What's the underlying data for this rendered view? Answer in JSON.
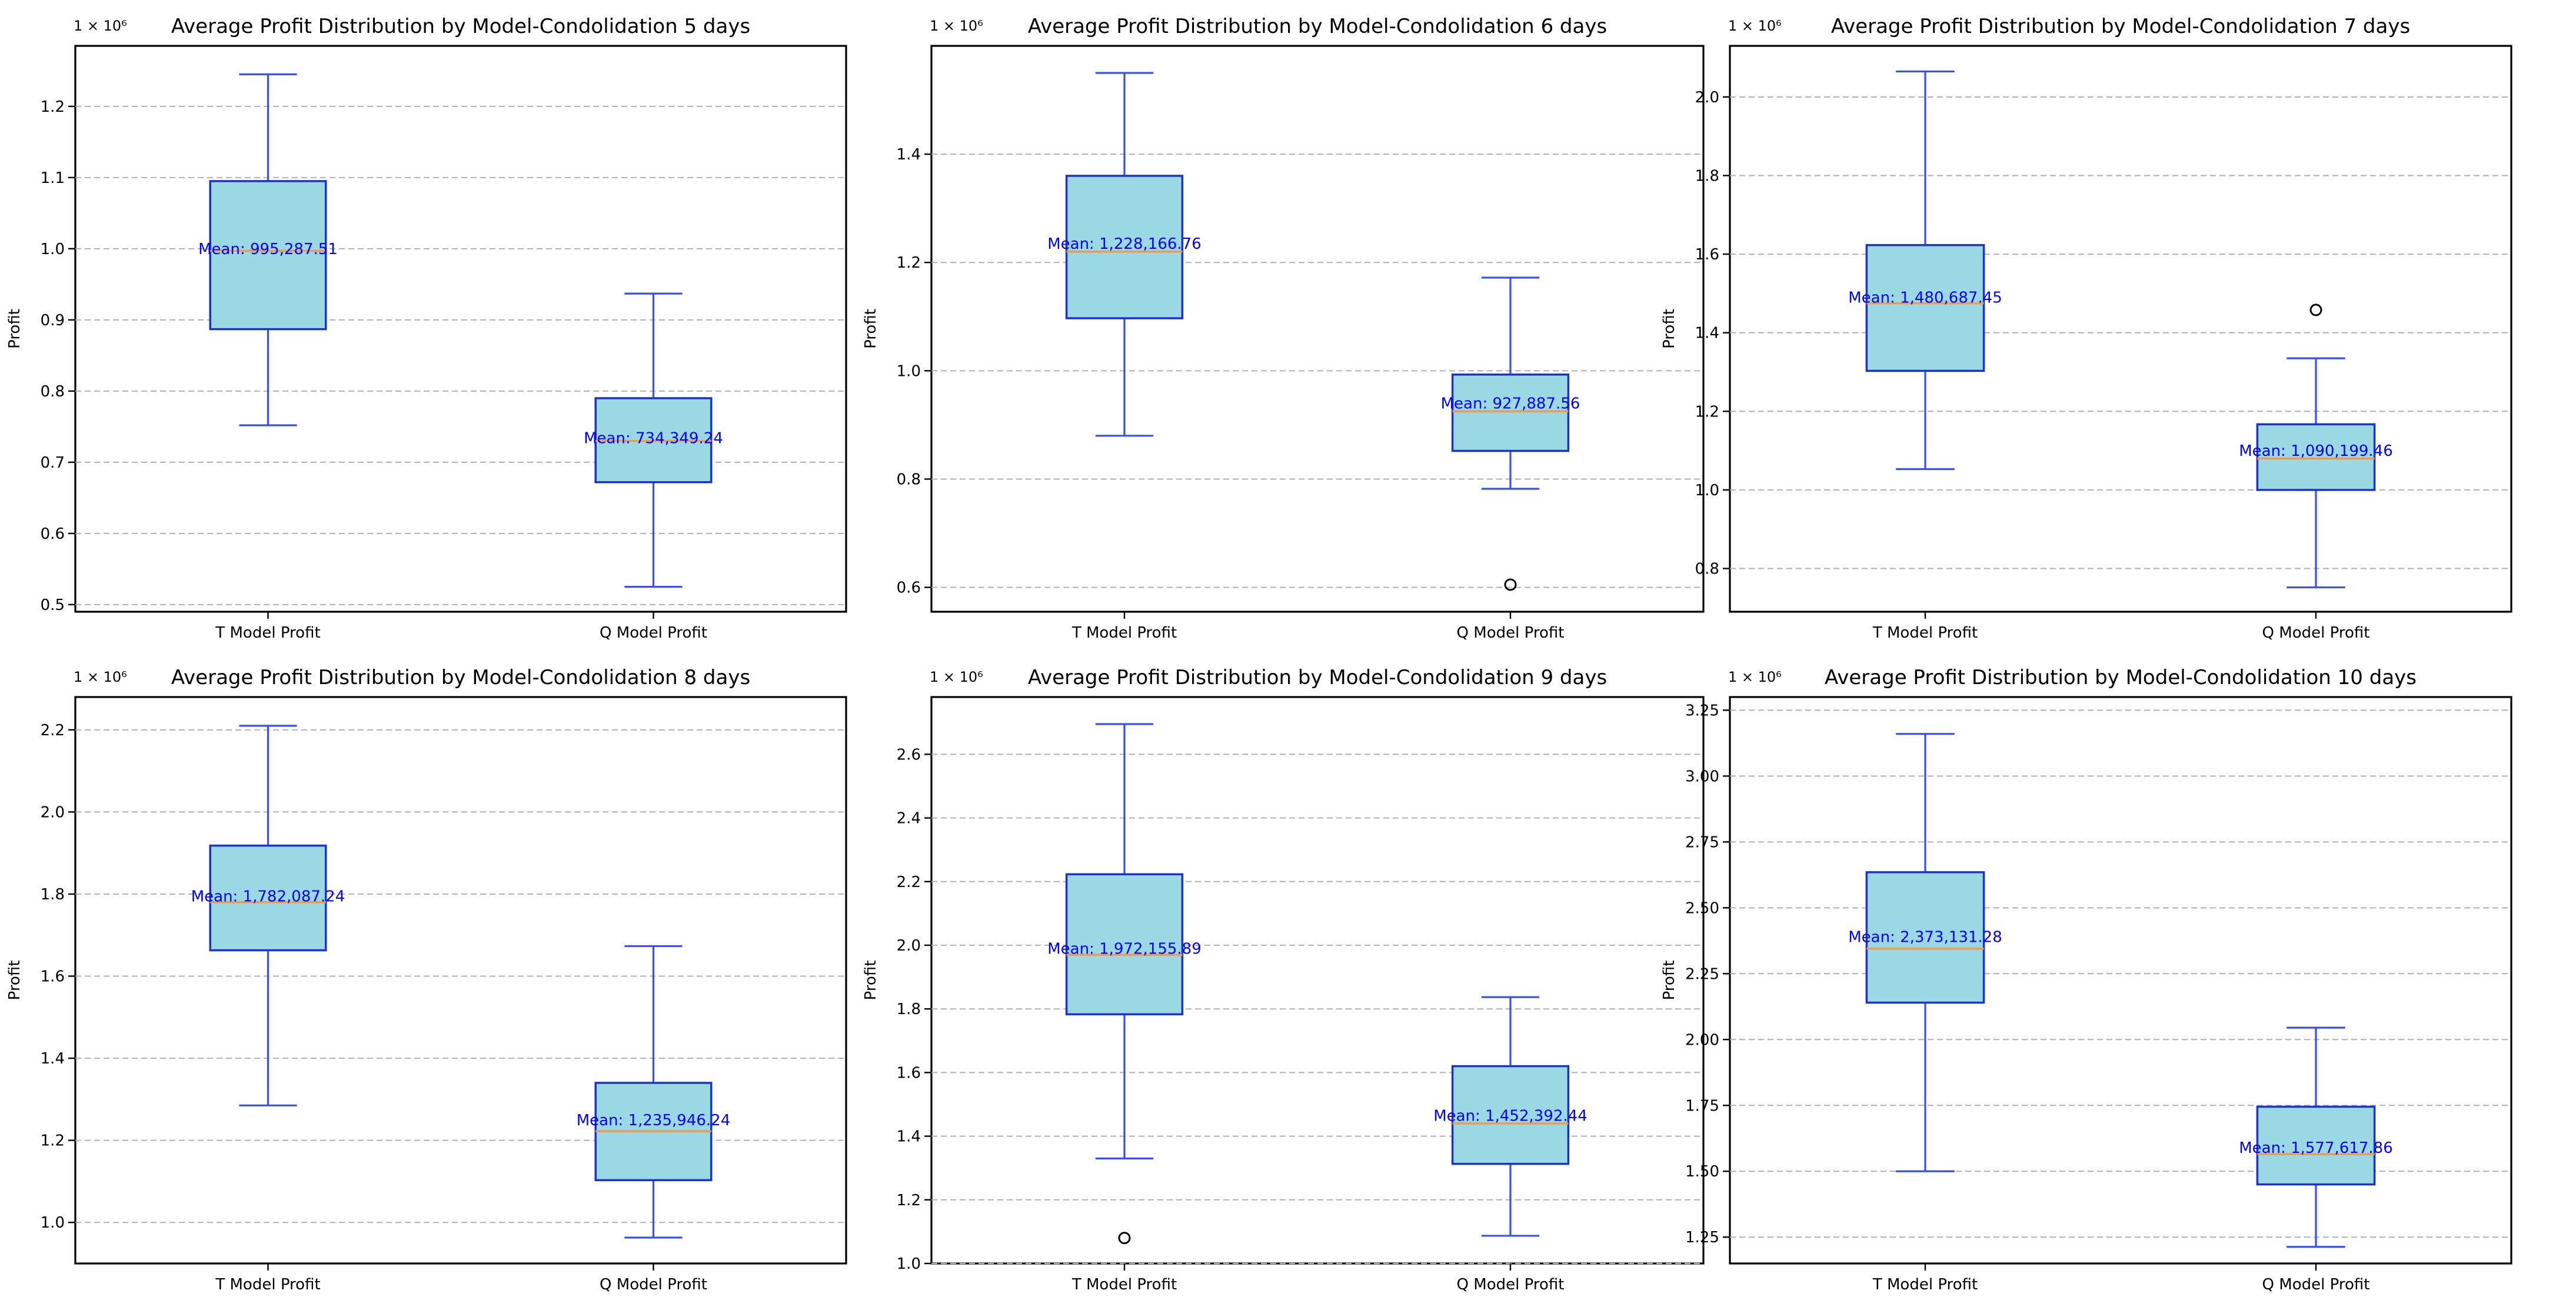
{
  "figure": {
    "background": "#ffffff"
  },
  "colors": {
    "box_fill": "#9ad8e4",
    "box_edge": "#1a33cc",
    "whisker": "#3a4ff2",
    "median": "#f09a4a",
    "mean_label": "#0000ff",
    "grid": "#b0b0b0"
  },
  "chart_data": [
    {
      "type": "box",
      "title": "Average Profit Distribution by Model-Condolidation 5 days",
      "ylabel": "Profit",
      "scale_label": "1 × 10⁶",
      "ylim": [
        0.49,
        1.285
      ],
      "yticks": [
        0.5,
        0.6,
        0.7,
        0.8,
        0.9,
        1.0,
        1.1,
        1.2
      ],
      "yticklabels": [
        "0.5",
        "0.6",
        "0.7",
        "0.8",
        "0.9",
        "1.0",
        "1.1",
        "1.2"
      ],
      "categories": [
        "T Model Profit",
        "Q Model Profit"
      ],
      "boxes": [
        {
          "whislo": 0.752,
          "q1": 0.887,
          "med": 0.997,
          "q3": 1.095,
          "whishi": 1.245,
          "mean_text": "Mean: 995,287.51",
          "mean_pos": 1.0,
          "fliers": []
        },
        {
          "whislo": 0.525,
          "q1": 0.672,
          "med": 0.73,
          "q3": 0.79,
          "whishi": 0.937,
          "mean_text": "Mean: 734,349.24",
          "mean_pos": 0.734,
          "fliers": []
        }
      ]
    },
    {
      "type": "box",
      "title": "Average Profit Distribution by Model-Condolidation 6 days",
      "ylabel": "Profit",
      "scale_label": "1 × 10⁶",
      "ylim": [
        0.555,
        1.6
      ],
      "yticks": [
        0.6,
        0.8,
        1.0,
        1.2,
        1.4
      ],
      "yticklabels": [
        "0.6",
        "0.8",
        "1.0",
        "1.2",
        "1.4"
      ],
      "categories": [
        "T Model Profit",
        "Q Model Profit"
      ],
      "boxes": [
        {
          "whislo": 0.88,
          "q1": 1.097,
          "med": 1.22,
          "q3": 1.36,
          "whishi": 1.55,
          "mean_text": "Mean: 1,228,166.76",
          "mean_pos": 1.235,
          "fliers": []
        },
        {
          "whislo": 0.782,
          "q1": 0.852,
          "med": 0.925,
          "q3": 0.993,
          "whishi": 1.172,
          "mean_text": "Mean: 927,887.56",
          "mean_pos": 0.94,
          "fliers": [
            0.605
          ]
        }
      ]
    },
    {
      "type": "box",
      "title": "Average Profit Distribution by Model-Condolidation 7 days",
      "ylabel": "Profit",
      "scale_label": "1 × 10⁶",
      "ylim": [
        0.69,
        2.13
      ],
      "yticks": [
        0.8,
        1.0,
        1.2,
        1.4,
        1.6,
        1.8,
        2.0
      ],
      "yticklabels": [
        "0.8",
        "1.0",
        "1.2",
        "1.4",
        "1.6",
        "1.8",
        "2.0"
      ],
      "categories": [
        "T Model Profit",
        "Q Model Profit"
      ],
      "boxes": [
        {
          "whislo": 1.053,
          "q1": 1.303,
          "med": 1.475,
          "q3": 1.623,
          "whishi": 2.065,
          "mean_text": "Mean: 1,480,687.45",
          "mean_pos": 1.49,
          "fliers": []
        },
        {
          "whislo": 0.752,
          "q1": 1.0,
          "med": 1.08,
          "q3": 1.167,
          "whishi": 1.335,
          "mean_text": "Mean: 1,090,199.46",
          "mean_pos": 1.1,
          "fliers": [
            1.458
          ]
        }
      ]
    },
    {
      "type": "box",
      "title": "Average Profit Distribution by Model-Condolidation 8 days",
      "ylabel": "Profit",
      "scale_label": "1 × 10⁶",
      "ylim": [
        0.9,
        2.28
      ],
      "yticks": [
        1.0,
        1.2,
        1.4,
        1.6,
        1.8,
        2.0,
        2.2
      ],
      "yticklabels": [
        "1.0",
        "1.2",
        "1.4",
        "1.6",
        "1.8",
        "2.0",
        "2.2"
      ],
      "categories": [
        "T Model Profit",
        "Q Model Profit"
      ],
      "boxes": [
        {
          "whislo": 1.285,
          "q1": 1.663,
          "med": 1.78,
          "q3": 1.918,
          "whishi": 2.21,
          "mean_text": "Mean: 1,782,087.24",
          "mean_pos": 1.795,
          "fliers": []
        },
        {
          "whislo": 0.963,
          "q1": 1.103,
          "med": 1.222,
          "q3": 1.34,
          "whishi": 1.673,
          "mean_text": "Mean: 1,235,946.24",
          "mean_pos": 1.25,
          "fliers": []
        }
      ]
    },
    {
      "type": "box",
      "title": "Average Profit Distribution by Model-Condolidation 9 days",
      "ylabel": "Profit",
      "scale_label": "1 × 10⁶",
      "ylim": [
        1.0,
        2.78
      ],
      "yticks": [
        1.0,
        1.2,
        1.4,
        1.6,
        1.8,
        2.0,
        2.2,
        2.4,
        2.6
      ],
      "yticklabels": [
        "1.0",
        "1.2",
        "1.4",
        "1.6",
        "1.8",
        "2.0",
        "2.2",
        "2.4",
        "2.6"
      ],
      "categories": [
        "T Model Profit",
        "Q Model Profit"
      ],
      "boxes": [
        {
          "whislo": 1.33,
          "q1": 1.783,
          "med": 1.97,
          "q3": 2.223,
          "whishi": 2.695,
          "mean_text": "Mean: 1,972,155.89",
          "mean_pos": 1.99,
          "fliers": [
            1.08
          ]
        },
        {
          "whislo": 1.087,
          "q1": 1.313,
          "med": 1.44,
          "q3": 1.62,
          "whishi": 1.837,
          "mean_text": "Mean: 1,452,392.44",
          "mean_pos": 1.465,
          "fliers": []
        }
      ]
    },
    {
      "type": "box",
      "title": "Average Profit Distribution by Model-Condolidation 10 days",
      "ylabel": "Profit",
      "scale_label": "1 × 10⁶",
      "ylim": [
        1.15,
        3.3
      ],
      "yticks": [
        1.25,
        1.5,
        1.75,
        2.0,
        2.25,
        2.5,
        2.75,
        3.0,
        3.25
      ],
      "yticklabels": [
        "1.25",
        "1.50",
        "1.75",
        "2.00",
        "2.25",
        "2.50",
        "2.75",
        "3.00",
        "3.25"
      ],
      "categories": [
        "T Model Profit",
        "Q Model Profit"
      ],
      "boxes": [
        {
          "whislo": 1.5,
          "q1": 2.14,
          "med": 2.345,
          "q3": 2.635,
          "whishi": 3.16,
          "mean_text": "Mean: 2,373,131.28",
          "mean_pos": 2.39,
          "fliers": []
        },
        {
          "whislo": 1.213,
          "q1": 1.45,
          "med": 1.565,
          "q3": 1.745,
          "whishi": 2.045,
          "mean_text": "Mean: 1,577,617.86",
          "mean_pos": 1.59,
          "fliers": []
        }
      ]
    }
  ]
}
